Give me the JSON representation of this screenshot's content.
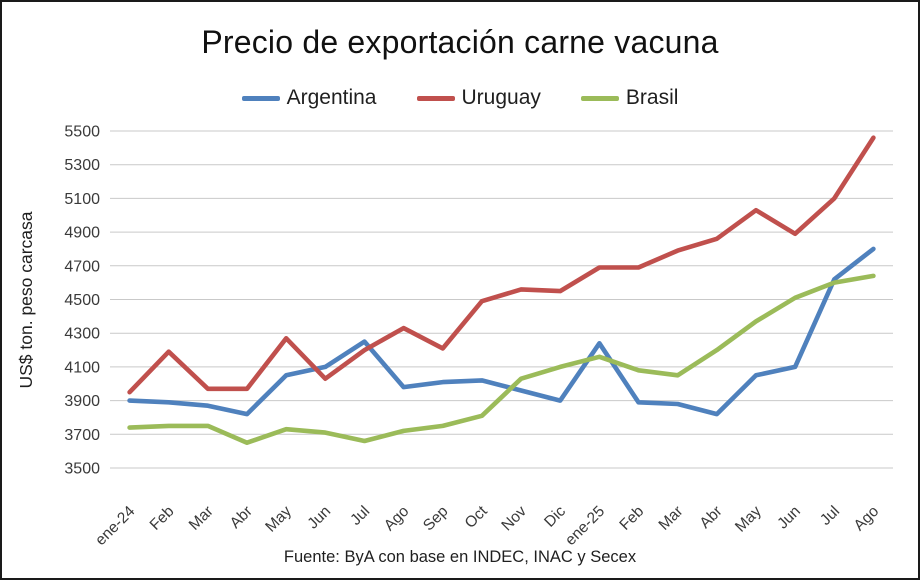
{
  "chart_data": {
    "type": "line",
    "title": "Precio de exportación carne vacuna",
    "ylabel": "US$ ton. peso carcasa",
    "xlabel": "",
    "source_note": "Fuente: ByA con base en INDEC, INAC y Secex",
    "categories": [
      "ene-24",
      "Feb",
      "Mar",
      "Abr",
      "May",
      "Jun",
      "Jul",
      "Ago",
      "Sep",
      "Oct",
      "Nov",
      "Dic",
      "ene-25",
      "Feb",
      "Mar",
      "Abr",
      "May",
      "Jun",
      "Jul",
      "Ago"
    ],
    "series": [
      {
        "name": "Argentina",
        "color": "#4F81BD",
        "values": [
          3900,
          3890,
          3870,
          3820,
          4050,
          4100,
          4250,
          3980,
          4010,
          4020,
          3960,
          3900,
          4240,
          3890,
          3880,
          3820,
          4050,
          4100,
          4620,
          4800
        ]
      },
      {
        "name": "Uruguay",
        "color": "#C0504D",
        "values": [
          3950,
          4190,
          3970,
          3970,
          4270,
          4030,
          4200,
          4330,
          4210,
          4490,
          4560,
          4550,
          4690,
          4690,
          4790,
          4860,
          5030,
          4890,
          5100,
          5460
        ]
      },
      {
        "name": "Brasil",
        "color": "#9BBB59",
        "values": [
          3740,
          3750,
          3750,
          3650,
          3730,
          3710,
          3660,
          3720,
          3750,
          3810,
          4030,
          4100,
          4160,
          4080,
          4050,
          4200,
          4370,
          4510,
          4600,
          4640
        ]
      }
    ],
    "ylim": [
      3500,
      5500
    ],
    "ytick_step": 200,
    "yticks": [
      3500,
      3700,
      3900,
      4100,
      4300,
      4500,
      4700,
      4900,
      5100,
      5300,
      5500
    ],
    "grid": true,
    "legend_position": "top",
    "gridline_color": "#c9c9c9",
    "tick_text_color": "#3a3a3a"
  }
}
